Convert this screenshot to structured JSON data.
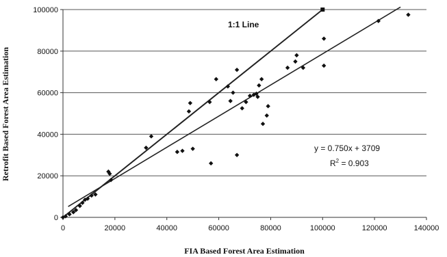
{
  "chart_data": {
    "type": "scatter",
    "title": "",
    "xlabel": "FIA Based Forest Area Estimation",
    "ylabel": "Retrofit Based Forest Area Estimation",
    "xlim": [
      0,
      140000
    ],
    "ylim": [
      0,
      100000
    ],
    "x_ticks": [
      "0",
      "20000",
      "40000",
      "60000",
      "80000",
      "100000",
      "120000",
      "140000"
    ],
    "y_ticks": [
      "0",
      "20000",
      "40000",
      "60000",
      "80000",
      "100000"
    ],
    "grid": "horizontal",
    "points": [
      [
        0,
        0
      ],
      [
        1000,
        500
      ],
      [
        2500,
        1500
      ],
      [
        4000,
        2500
      ],
      [
        5000,
        3500
      ],
      [
        6500,
        5500
      ],
      [
        7500,
        7000
      ],
      [
        8500,
        8500
      ],
      [
        9500,
        9000
      ],
      [
        11000,
        10500
      ],
      [
        12500,
        11000
      ],
      [
        17500,
        22000
      ],
      [
        18000,
        21000
      ],
      [
        18500,
        18000
      ],
      [
        32000,
        33500
      ],
      [
        34000,
        39000
      ],
      [
        44000,
        31500
      ],
      [
        46000,
        32000
      ],
      [
        48500,
        51000
      ],
      [
        49000,
        55000
      ],
      [
        50000,
        33000
      ],
      [
        57000,
        26000
      ],
      [
        56500,
        55500
      ],
      [
        59000,
        66500
      ],
      [
        63500,
        63000
      ],
      [
        64500,
        56000
      ],
      [
        65500,
        60000
      ],
      [
        67000,
        71000
      ],
      [
        67000,
        30000
      ],
      [
        69000,
        52500
      ],
      [
        70500,
        55500
      ],
      [
        72000,
        58500
      ],
      [
        73500,
        59000
      ],
      [
        74500,
        59500
      ],
      [
        75000,
        58000
      ],
      [
        75500,
        63500
      ],
      [
        76500,
        66500
      ],
      [
        77000,
        45000
      ],
      [
        78500,
        49000
      ],
      [
        79000,
        53500
      ],
      [
        86500,
        72000
      ],
      [
        89500,
        75000
      ],
      [
        90000,
        78000
      ],
      [
        92500,
        72000
      ],
      [
        100000,
        100000
      ],
      [
        100500,
        86000
      ],
      [
        100500,
        73000
      ],
      [
        121500,
        94500
      ],
      [
        133000,
        97500
      ]
    ],
    "lines": [
      {
        "name": "1:1 Line",
        "x": [
          0,
          100000
        ],
        "y": [
          0,
          100000
        ]
      },
      {
        "name": "fit",
        "x": [
          2000,
          130000
        ],
        "y": [
          5209,
          101209
        ]
      }
    ],
    "annotations": {
      "one_to_one": "1:1 Line",
      "equation": "y = 0.750x + 3709",
      "r2_prefix": "R",
      "r2_exp": "2",
      "r2_suffix": " = 0.903"
    },
    "colors": {
      "marker": "#111111",
      "line": "#222222",
      "grid": "#555555"
    }
  }
}
